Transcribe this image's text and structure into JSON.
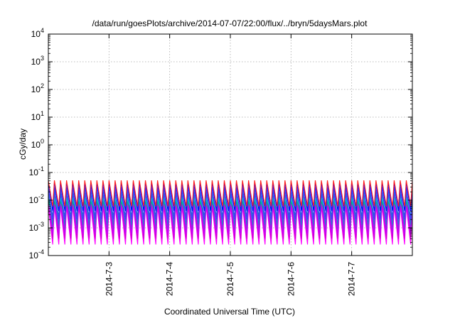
{
  "chart_data": {
    "type": "line",
    "title": "/data/run/goesPlots/archive/2014-07-07/22:00/flux/../bryn/5daysMars.plot",
    "xlabel": "Coordinated Universal Time (UTC)",
    "ylabel": "cGy/day",
    "yscale": "log",
    "ylim": [
      0.0001,
      10000
    ],
    "y_ticks": [
      {
        "value": 0.0001,
        "mantissa": "10",
        "exponent": "-4"
      },
      {
        "value": 0.001,
        "mantissa": "10",
        "exponent": "-3"
      },
      {
        "value": 0.01,
        "mantissa": "10",
        "exponent": "-2"
      },
      {
        "value": 0.1,
        "mantissa": "10",
        "exponent": "-1"
      },
      {
        "value": 1,
        "mantissa": "10",
        "exponent": "0"
      },
      {
        "value": 10,
        "mantissa": "10",
        "exponent": "1"
      },
      {
        "value": 100,
        "mantissa": "10",
        "exponent": "2"
      },
      {
        "value": 1000,
        "mantissa": "10",
        "exponent": "3"
      },
      {
        "value": 10000,
        "mantissa": "10",
        "exponent": "4"
      }
    ],
    "xlim": [
      "2014-07-02T00:00",
      "2014-07-08T00:00"
    ],
    "x_ticks": [
      {
        "value": "2014-07-03T00:00",
        "label": "2014-7-3"
      },
      {
        "value": "2014-07-04T00:00",
        "label": "2014-7-4"
      },
      {
        "value": "2014-07-05T00:00",
        "label": "2014-7-5"
      },
      {
        "value": "2014-07-06T00:00",
        "label": "2014-7-6"
      },
      {
        "value": "2014-07-07T00:00",
        "label": "2014-7-7"
      }
    ],
    "grid": true,
    "legend": "none",
    "oscillation": {
      "start": "2014-07-02T00:00",
      "end": "2014-07-08T00:00",
      "cycles": 60
    },
    "series": [
      {
        "color": "#ff00ff",
        "peak": 0.006,
        "trough": 0.00025
      },
      {
        "color": "#cc00cc",
        "peak": 0.008,
        "trough": 0.0004
      },
      {
        "color": "#c000ff",
        "peak": 0.01,
        "trough": 0.0006
      },
      {
        "color": "#8a2be2",
        "peak": 0.015,
        "trough": 0.0009
      },
      {
        "color": "#2f6fd0",
        "peak": 0.02,
        "trough": 0.0013
      },
      {
        "color": "#00c8c8",
        "peak": 0.012,
        "trough": 0.0025
      },
      {
        "color": "#00b080",
        "peak": 0.009,
        "trough": 0.003
      },
      {
        "color": "#3a3aff",
        "peak": 0.03,
        "trough": 0.002
      },
      {
        "color": "#0000ff",
        "peak": 0.045,
        "trough": 0.004
      },
      {
        "color": "#ff2020",
        "peak": 0.052,
        "trough": 0.006
      }
    ]
  }
}
